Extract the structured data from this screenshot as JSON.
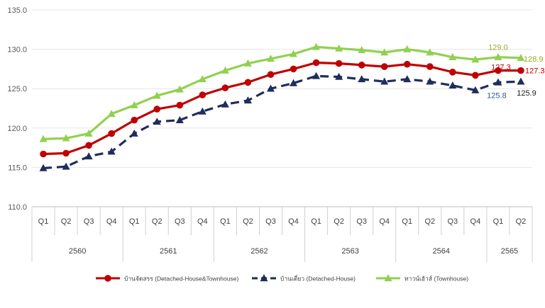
{
  "chart_data": {
    "type": "line",
    "quarters": [
      "Q1",
      "Q2",
      "Q3",
      "Q4",
      "Q1",
      "Q2",
      "Q3",
      "Q4",
      "Q1",
      "Q2",
      "Q3",
      "Q4",
      "Q1",
      "Q2",
      "Q3",
      "Q4",
      "Q1",
      "Q2",
      "Q3",
      "Q4",
      "Q1",
      "Q2"
    ],
    "years": [
      {
        "label": "2560",
        "span": 4
      },
      {
        "label": "2561",
        "span": 4
      },
      {
        "label": "2562",
        "span": 4
      },
      {
        "label": "2563",
        "span": 4
      },
      {
        "label": "2564",
        "span": 4
      },
      {
        "label": "2565",
        "span": 2
      }
    ],
    "ylim": [
      110,
      135
    ],
    "yticks": [
      "110.0",
      "115.0",
      "120.0",
      "125.0",
      "130.0",
      "135.0"
    ],
    "series": [
      {
        "name": "บ้านจัดสรร (Detached-House&Townhouse)",
        "color": "#c00000",
        "marker": "circle",
        "dash": false,
        "values": [
          116.7,
          116.8,
          117.8,
          119.3,
          121.0,
          122.4,
          122.9,
          124.2,
          125.1,
          125.8,
          126.8,
          127.5,
          128.3,
          128.2,
          128.0,
          127.8,
          128.1,
          127.8,
          127.1,
          126.7,
          127.3,
          127.3
        ]
      },
      {
        "name": "บ้านเดี่ยว (Detached-House)",
        "color": "#1f2d5c",
        "marker": "triangle",
        "dash": true,
        "values": [
          114.9,
          115.1,
          116.4,
          117.0,
          119.3,
          120.8,
          121.0,
          122.1,
          123.0,
          123.5,
          125.0,
          125.7,
          126.6,
          126.5,
          126.2,
          125.9,
          126.2,
          125.9,
          125.4,
          124.8,
          125.8,
          125.9
        ]
      },
      {
        "name": "ทาวน์เฮ้าส์ (Townhouse)",
        "color": "#92d050",
        "marker": "triangle",
        "dash": false,
        "values": [
          118.6,
          118.7,
          119.3,
          121.8,
          122.9,
          124.1,
          124.9,
          126.2,
          127.3,
          128.2,
          128.8,
          129.4,
          130.3,
          130.1,
          129.9,
          129.6,
          130.0,
          129.6,
          129.0,
          128.7,
          129.0,
          128.9
        ]
      }
    ],
    "annotations": [
      {
        "text": "129.0",
        "color": "#9aaa1f",
        "series": 2,
        "index": 20
      },
      {
        "text": "128.9",
        "color": "#9aaa1f",
        "series": 2,
        "index": 21
      },
      {
        "text": "127.3",
        "color": "#c00000",
        "series": 0,
        "index": 20
      },
      {
        "text": "127.3",
        "color": "#c00000",
        "series": 0,
        "index": 21
      },
      {
        "text": "125.8",
        "color": "#2e5a8f",
        "series": 1,
        "index": 20
      },
      {
        "text": "125.9",
        "color": "#1a1a1a",
        "series": 1,
        "index": 21
      }
    ]
  }
}
